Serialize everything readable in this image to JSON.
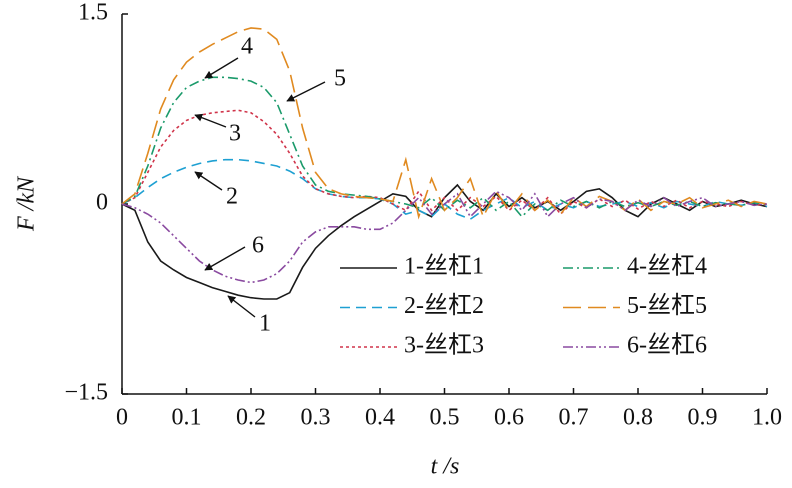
{
  "chart_data": {
    "type": "line",
    "x_label": "t /s",
    "y_label": "F /kN",
    "x": [
      0,
      0.02,
      0.04,
      0.06,
      0.08,
      0.1,
      0.12,
      0.14,
      0.16,
      0.18,
      0.2,
      0.22,
      0.24,
      0.26,
      0.28,
      0.3,
      0.32,
      0.34,
      0.36,
      0.38,
      0.4,
      0.42,
      0.44,
      0.46,
      0.48,
      0.5,
      0.52,
      0.54,
      0.56,
      0.58,
      0.6,
      0.62,
      0.64,
      0.66,
      0.68,
      0.7,
      0.72,
      0.74,
      0.76,
      0.78,
      0.8,
      0.82,
      0.84,
      0.86,
      0.88,
      0.9,
      0.92,
      0.94,
      0.96,
      0.98,
      1
    ],
    "xlim": [
      0,
      1
    ],
    "ylim": [
      -1.5,
      1.5
    ],
    "xticks": [
      0,
      0.1,
      0.2,
      0.3,
      0.4,
      0.5,
      0.6,
      0.7,
      0.8,
      0.9,
      {
        "value": 1,
        "label": "1.0"
      }
    ],
    "yticks": [
      {
        "value": -1.5,
        "label": "−1.5"
      },
      0,
      1.5
    ],
    "series": [
      {
        "name": "1-丝杠1",
        "color": "#1a1a1a",
        "style": "solid",
        "values": [
          0,
          -0.05,
          -0.3,
          -0.45,
          -0.52,
          -0.58,
          -0.62,
          -0.66,
          -0.69,
          -0.72,
          -0.74,
          -0.75,
          -0.75,
          -0.7,
          -0.5,
          -0.35,
          -0.25,
          -0.17,
          -0.1,
          -0.04,
          0.02,
          0.08,
          0.06,
          -0.05,
          -0.1,
          0.05,
          0.15,
          0.02,
          -0.05,
          0.08,
          -0.02,
          0.05,
          -0.03,
          0.02,
          -0.05,
          0.02,
          0.1,
          0.12,
          0.05,
          -0.05,
          -0.1,
          0,
          0.05,
          0,
          -0.05,
          0.02,
          -0.02,
          0,
          0.03,
          0,
          -0.02
        ]
      },
      {
        "name": "2-丝杠2",
        "color": "#1ea0d2",
        "style": "dashed",
        "values": [
          0,
          0.05,
          0.13,
          0.2,
          0.25,
          0.29,
          0.32,
          0.34,
          0.35,
          0.35,
          0.34,
          0.32,
          0.3,
          0.26,
          0.2,
          0.12,
          0.08,
          0.06,
          0.05,
          0.05,
          0.04,
          0,
          -0.08,
          -0.05,
          -0.1,
          0,
          -0.08,
          -0.12,
          -0.05,
          0,
          0.05,
          -0.03,
          0.02,
          -0.05,
          0,
          -0.03,
          0.02,
          -0.02,
          0,
          0.02,
          -0.02,
          0.01,
          -0.03,
          0.02,
          0,
          -0.02,
          0.02,
          0,
          -0.01,
          0.01,
          -0.02
        ]
      },
      {
        "name": "3-丝杠3",
        "color": "#d0344a",
        "style": "dotted",
        "values": [
          0,
          0.05,
          0.25,
          0.45,
          0.58,
          0.66,
          0.7,
          0.72,
          0.73,
          0.74,
          0.72,
          0.65,
          0.55,
          0.4,
          0.22,
          0.12,
          0.08,
          0.06,
          0.05,
          0.06,
          0.05,
          0,
          -0.05,
          0.1,
          -0.05,
          0.05,
          -0.05,
          0.05,
          -0.02,
          0.06,
          -0.05,
          0.03,
          -0.05,
          0.05,
          -0.08,
          0.02,
          -0.03,
          0.04,
          -0.02,
          0.03,
          -0.04,
          0.02,
          -0.02,
          0.03,
          -0.03,
          0.02,
          0,
          -0.02,
          0.02,
          -0.01,
          0
        ]
      },
      {
        "name": "4-丝杠4",
        "color": "#1a9a6a",
        "style": "dashdot",
        "values": [
          0,
          0.06,
          0.3,
          0.6,
          0.8,
          0.92,
          0.97,
          1,
          1,
          0.99,
          0.97,
          0.92,
          0.8,
          0.55,
          0.3,
          0.15,
          0.1,
          0.08,
          0.07,
          0.06,
          0.04,
          0.02,
          0,
          -0.03,
          0.05,
          -0.05,
          0.03,
          -0.03,
          0.05,
          -0.05,
          0.02,
          -0.1,
          0,
          -0.05,
          0.03,
          -0.02,
          0.02,
          -0.03,
          0.02,
          -0.02,
          0.01,
          -0.02,
          0.02,
          -0.01,
          0.02,
          -0.02,
          0.01,
          0,
          -0.01,
          0.01,
          0
        ]
      },
      {
        "name": "5-丝杠5",
        "color": "#e08a20",
        "style": "longdash",
        "values": [
          0,
          0.08,
          0.4,
          0.75,
          0.98,
          1.12,
          1.2,
          1.26,
          1.31,
          1.36,
          1.39,
          1.38,
          1.3,
          1.05,
          0.6,
          0.25,
          0.12,
          0.08,
          0.06,
          0.05,
          0.04,
          0.02,
          0.35,
          -0.1,
          0.2,
          -0.05,
          0.05,
          0.2,
          -0.1,
          0.1,
          -0.05,
          0.08,
          -0.05,
          0.03,
          -0.08,
          0.05,
          -0.02,
          0.06,
          0.02,
          -0.05,
          0.04,
          -0.05,
          0.02,
          0,
          0.05,
          -0.03,
          0,
          0.03,
          -0.02,
          0.02,
          0
        ]
      },
      {
        "name": "6-丝杠6",
        "color": "#8a4aa0",
        "style": "dashdotdot",
        "values": [
          0,
          -0.03,
          -0.08,
          -0.15,
          -0.25,
          -0.35,
          -0.45,
          -0.52,
          -0.57,
          -0.6,
          -0.62,
          -0.6,
          -0.55,
          -0.45,
          -0.3,
          -0.22,
          -0.18,
          -0.18,
          -0.18,
          -0.2,
          -0.2,
          -0.15,
          -0.05,
          0.05,
          -0.08,
          0,
          0.08,
          -0.1,
          0,
          0.1,
          0.05,
          -0.05,
          0.08,
          -0.1,
          0,
          0.05,
          -0.03,
          0.04,
          0.02,
          -0.05,
          0.03,
          -0.02,
          0.05,
          -0.02,
          0.02,
          0.05,
          -0.02,
          0,
          0.02,
          -0.01,
          0
        ]
      }
    ],
    "annotations": [
      "4",
      "5",
      "3",
      "2",
      "6",
      "1"
    ]
  }
}
